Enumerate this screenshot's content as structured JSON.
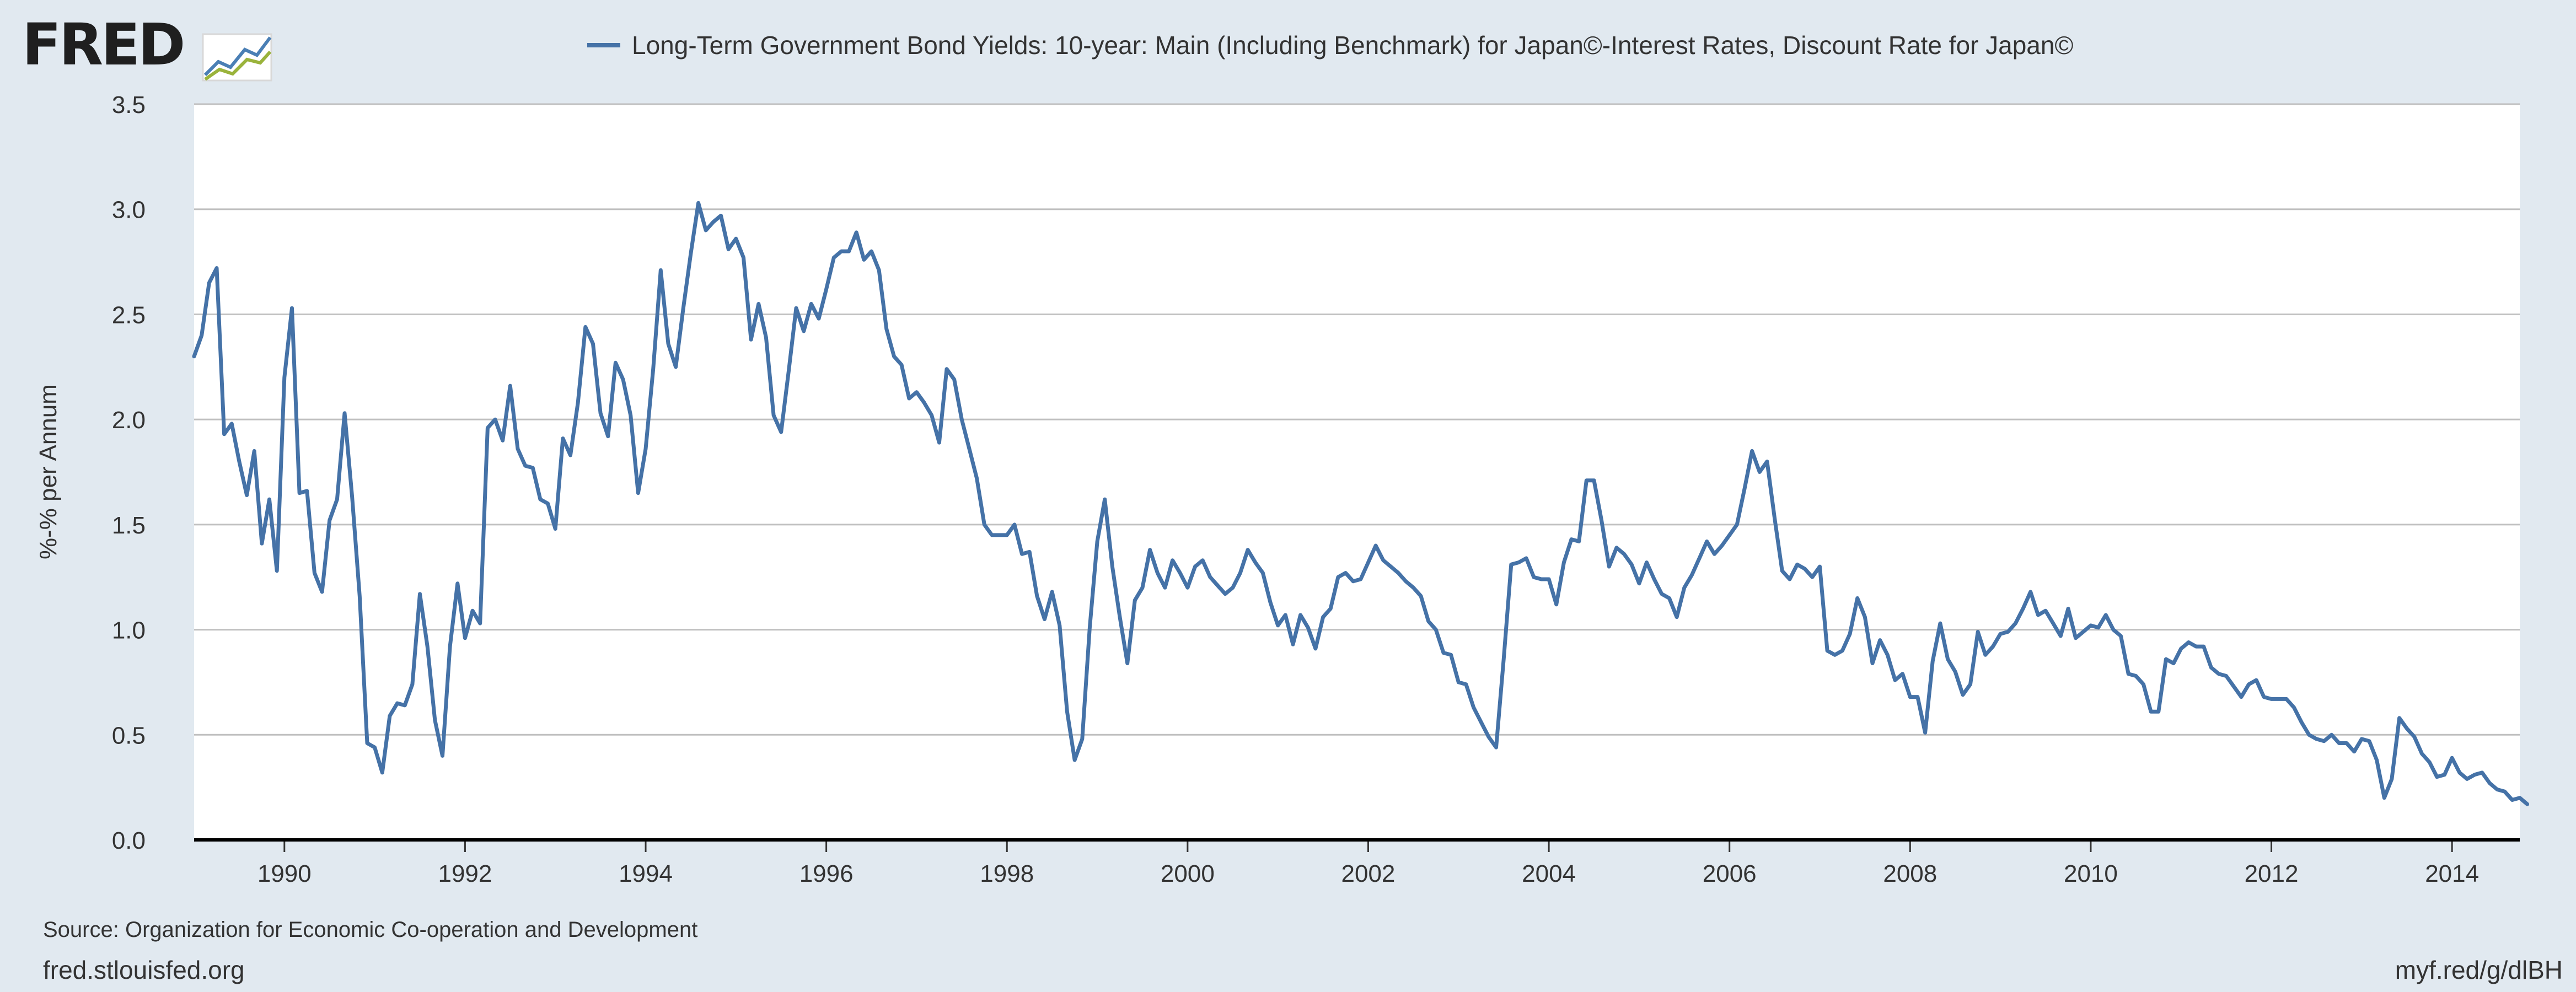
{
  "brand": {
    "logo_text": "FRED"
  },
  "footer": {
    "source": "Source: Organization for Economic Co-operation and Development",
    "site": "fred.stlouisfed.org",
    "shortlink": "myf.red/g/dlBH"
  },
  "colors": {
    "background": "#e1e9f0",
    "plot_background": "#ffffff",
    "series": "#4572a7",
    "grid": "#c0c0c0",
    "axis": "#000000"
  },
  "chart_data": {
    "type": "line",
    "legend": [
      "Long-Term Government Bond Yields: 10-year: Main (Including Benchmark) for Japan©-Interest Rates, Discount Rate for Japan©"
    ],
    "legend_position": "top-center",
    "ylabel": "%-% per Annum",
    "xlabel": "",
    "ylim": [
      0,
      3.5
    ],
    "xlim": [
      1989.0,
      2014.75
    ],
    "grid": true,
    "y_ticks": [
      "0.0",
      "0.5",
      "1.0",
      "1.5",
      "2.0",
      "2.5",
      "3.0",
      "3.5"
    ],
    "x_ticks": [
      "1990",
      "1992",
      "1994",
      "1996",
      "1998",
      "2000",
      "2002",
      "2004",
      "2006",
      "2008",
      "2010",
      "2012",
      "2014"
    ],
    "series": [
      {
        "x_start": 1989.0,
        "x_step": 0.083333,
        "values": [
          2.3,
          2.4,
          2.65,
          2.72,
          1.93,
          1.98,
          1.8,
          1.64,
          1.85,
          1.41,
          1.62,
          1.28,
          2.2,
          2.53,
          1.65,
          1.66,
          1.27,
          1.18,
          1.52,
          1.62,
          2.03,
          1.63,
          1.16,
          0.46,
          0.44,
          0.32,
          0.59,
          0.65,
          0.64,
          0.74,
          1.17,
          0.92,
          0.57,
          0.4,
          0.92,
          1.22,
          0.96,
          1.09,
          1.03,
          1.96,
          2.0,
          1.9,
          2.16,
          1.86,
          1.78,
          1.77,
          1.62,
          1.6,
          1.48,
          1.91,
          1.83,
          2.08,
          2.44,
          2.36,
          2.03,
          1.92,
          2.27,
          2.19,
          2.02,
          1.65,
          1.86,
          2.24,
          2.71,
          2.36,
          2.25,
          2.53,
          2.79,
          3.03,
          2.9,
          2.94,
          2.97,
          2.81,
          2.86,
          2.77,
          2.38,
          2.55,
          2.39,
          2.02,
          1.94,
          2.23,
          2.53,
          2.42,
          2.55,
          2.48,
          2.62,
          2.77,
          2.8,
          2.8,
          2.89,
          2.76,
          2.8,
          2.71,
          2.43,
          2.3,
          2.26,
          2.1,
          2.13,
          2.08,
          2.02,
          1.89,
          2.24,
          2.19,
          2.0,
          1.86,
          1.72,
          1.5,
          1.45,
          1.45,
          1.45,
          1.5,
          1.36,
          1.37,
          1.16,
          1.05,
          1.18,
          1.02,
          0.61,
          0.38,
          0.48,
          1.01,
          1.42,
          1.62,
          1.3,
          1.06,
          0.84,
          1.14,
          1.2,
          1.38,
          1.27,
          1.2,
          1.33,
          1.27,
          1.2,
          1.3,
          1.33,
          1.25,
          1.21,
          1.17,
          1.2,
          1.27,
          1.38,
          1.32,
          1.27,
          1.13,
          1.02,
          1.07,
          0.93,
          1.07,
          1.01,
          0.91,
          1.06,
          1.1,
          1.25,
          1.27,
          1.23,
          1.24,
          1.32,
          1.4,
          1.33,
          1.3,
          1.27,
          1.23,
          1.2,
          1.16,
          1.04,
          1.0,
          0.89,
          0.88,
          0.75,
          0.74,
          0.63,
          0.56,
          0.49,
          0.44,
          0.86,
          1.31,
          1.32,
          1.34,
          1.25,
          1.24,
          1.24,
          1.12,
          1.32,
          1.43,
          1.42,
          1.71,
          1.71,
          1.52,
          1.3,
          1.39,
          1.36,
          1.31,
          1.22,
          1.32,
          1.24,
          1.17,
          1.15,
          1.06,
          1.2,
          1.26,
          1.34,
          1.42,
          1.36,
          1.4,
          1.45,
          1.5,
          1.67,
          1.85,
          1.75,
          1.8,
          1.53,
          1.28,
          1.24,
          1.31,
          1.29,
          1.25,
          1.3,
          0.9,
          0.88,
          0.9,
          0.98,
          1.15,
          1.06,
          0.84,
          0.95,
          0.88,
          0.76,
          0.79,
          0.68,
          0.68,
          0.51,
          0.85,
          1.03,
          0.86,
          0.8,
          0.69,
          0.74,
          0.99,
          0.88,
          0.92,
          0.98,
          0.99,
          1.03,
          1.1,
          1.18,
          1.07,
          1.09,
          1.03,
          0.97,
          1.1,
          0.96,
          0.99,
          1.02,
          1.01,
          1.07,
          1.0,
          0.97,
          0.79,
          0.78,
          0.74,
          0.61,
          0.61,
          0.86,
          0.84,
          0.91,
          0.94,
          0.92,
          0.92,
          0.82,
          0.79,
          0.78,
          0.73,
          0.68,
          0.74,
          0.76,
          0.68,
          0.67,
          0.67,
          0.67,
          0.63,
          0.56,
          0.5,
          0.48,
          0.47,
          0.5,
          0.46,
          0.46,
          0.42,
          0.48,
          0.47,
          0.38,
          0.2,
          0.29,
          0.58,
          0.53,
          0.49,
          0.41,
          0.37,
          0.3,
          0.31,
          0.39,
          0.32,
          0.29,
          0.31,
          0.32,
          0.27,
          0.24,
          0.23,
          0.19,
          0.2,
          0.17
        ]
      }
    ]
  }
}
